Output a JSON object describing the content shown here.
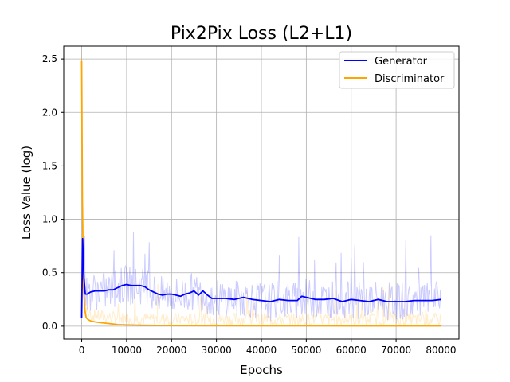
{
  "chart_data": {
    "type": "line",
    "title": "Pix2Pix Loss (L2+L1)",
    "xlabel": "Epochs",
    "ylabel": "Loss Value (log)",
    "xlim": [
      -4000,
      84000
    ],
    "ylim": [
      -0.12,
      2.62
    ],
    "xticks": [
      0,
      10000,
      20000,
      30000,
      40000,
      50000,
      60000,
      70000,
      80000
    ],
    "xtick_labels": [
      "0",
      "10000",
      "20000",
      "30000",
      "40000",
      "50000",
      "60000",
      "70000",
      "80000"
    ],
    "yticks": [
      0.0,
      0.5,
      1.0,
      1.5,
      2.0,
      2.5
    ],
    "ytick_labels": [
      "0.0",
      "0.5",
      "1.0",
      "1.5",
      "2.0",
      "2.5"
    ],
    "grid": true,
    "legend_position": "top-right",
    "colors": {
      "generator": "#0000ff",
      "discriminator": "#ffa500"
    },
    "series": [
      {
        "name": "Generator",
        "key": "generator",
        "x": [
          0,
          200,
          500,
          800,
          1200,
          2000,
          3000,
          4000,
          5000,
          6000,
          7000,
          8000,
          9000,
          10000,
          11000,
          12000,
          13000,
          14000,
          15000,
          16000,
          17000,
          18000,
          19000,
          20000,
          21000,
          22000,
          23000,
          24000,
          25000,
          26000,
          27000,
          28000,
          29000,
          30000,
          32000,
          34000,
          36000,
          38000,
          40000,
          42000,
          44000,
          46000,
          48000,
          49000,
          50000,
          52000,
          54000,
          56000,
          58000,
          60000,
          62000,
          64000,
          66000,
          68000,
          70000,
          72000,
          74000,
          76000,
          78000,
          80000
        ],
        "values": [
          0.08,
          0.82,
          0.45,
          0.3,
          0.3,
          0.32,
          0.33,
          0.33,
          0.33,
          0.34,
          0.34,
          0.36,
          0.38,
          0.39,
          0.38,
          0.38,
          0.38,
          0.37,
          0.34,
          0.32,
          0.3,
          0.29,
          0.3,
          0.3,
          0.29,
          0.28,
          0.3,
          0.31,
          0.33,
          0.29,
          0.33,
          0.29,
          0.26,
          0.26,
          0.26,
          0.25,
          0.27,
          0.25,
          0.24,
          0.23,
          0.25,
          0.24,
          0.24,
          0.28,
          0.27,
          0.25,
          0.25,
          0.26,
          0.23,
          0.25,
          0.24,
          0.23,
          0.25,
          0.23,
          0.23,
          0.23,
          0.24,
          0.24,
          0.24,
          0.25
        ]
      },
      {
        "name": "Discriminator",
        "key": "discriminator",
        "x": [
          0,
          150,
          400,
          700,
          1000,
          1500,
          2000,
          3000,
          4000,
          5000,
          6000,
          7000,
          8000,
          10000,
          12000,
          15000,
          20000,
          30000,
          40000,
          50000,
          60000,
          70000,
          80000
        ],
        "values": [
          2.48,
          1.2,
          0.38,
          0.15,
          0.08,
          0.06,
          0.05,
          0.04,
          0.035,
          0.03,
          0.025,
          0.02,
          0.015,
          0.012,
          0.01,
          0.008,
          0.006,
          0.005,
          0.004,
          0.004,
          0.003,
          0.003,
          0.003
        ]
      }
    ]
  }
}
